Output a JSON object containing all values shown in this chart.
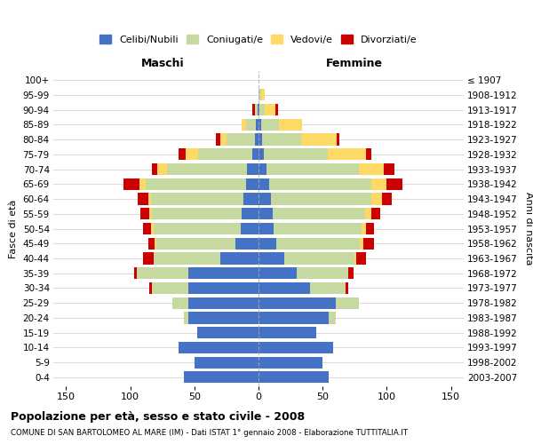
{
  "age_groups": [
    "0-4",
    "5-9",
    "10-14",
    "15-19",
    "20-24",
    "25-29",
    "30-34",
    "35-39",
    "40-44",
    "45-49",
    "50-54",
    "55-59",
    "60-64",
    "65-69",
    "70-74",
    "75-79",
    "80-84",
    "85-89",
    "90-94",
    "95-99",
    "100+"
  ],
  "birth_years": [
    "2003-2007",
    "1998-2002",
    "1993-1997",
    "1988-1992",
    "1983-1987",
    "1978-1982",
    "1973-1977",
    "1968-1972",
    "1963-1967",
    "1958-1962",
    "1953-1957",
    "1948-1952",
    "1943-1947",
    "1938-1942",
    "1933-1937",
    "1928-1932",
    "1923-1927",
    "1918-1922",
    "1913-1917",
    "1908-1912",
    "≤ 1907"
  ],
  "male": {
    "celibi": [
      58,
      50,
      62,
      48,
      55,
      55,
      55,
      55,
      30,
      18,
      14,
      13,
      12,
      10,
      9,
      5,
      3,
      2,
      1,
      0,
      0
    ],
    "coniugati": [
      0,
      0,
      0,
      0,
      3,
      12,
      28,
      40,
      52,
      62,
      68,
      70,
      72,
      78,
      62,
      42,
      22,
      8,
      2,
      0,
      0
    ],
    "vedovi": [
      0,
      0,
      0,
      0,
      0,
      0,
      0,
      0,
      0,
      1,
      2,
      2,
      2,
      5,
      8,
      10,
      5,
      3,
      0,
      0,
      0
    ],
    "divorziati": [
      0,
      0,
      0,
      0,
      0,
      0,
      2,
      2,
      8,
      5,
      6,
      7,
      8,
      12,
      4,
      5,
      3,
      0,
      2,
      0,
      0
    ]
  },
  "female": {
    "nubili": [
      55,
      50,
      58,
      45,
      55,
      60,
      40,
      30,
      20,
      14,
      12,
      11,
      10,
      8,
      6,
      4,
      3,
      2,
      1,
      0,
      0
    ],
    "coniugate": [
      0,
      0,
      0,
      0,
      5,
      18,
      28,
      40,
      55,
      65,
      68,
      72,
      78,
      80,
      72,
      50,
      30,
      14,
      4,
      2,
      0
    ],
    "vedove": [
      0,
      0,
      0,
      0,
      0,
      0,
      0,
      0,
      1,
      3,
      4,
      5,
      8,
      12,
      20,
      30,
      28,
      18,
      8,
      3,
      0
    ],
    "divorziate": [
      0,
      0,
      0,
      0,
      0,
      0,
      2,
      4,
      8,
      8,
      6,
      7,
      8,
      12,
      8,
      4,
      2,
      0,
      2,
      0,
      0
    ]
  },
  "colors": {
    "celibi": "#4472C4",
    "coniugati": "#C5D9A0",
    "vedovi": "#FFD966",
    "divorziati": "#CC0000"
  },
  "legend_labels": [
    "Celibi/Nubili",
    "Coniugati/e",
    "Vedovi/e",
    "Divorziati/e"
  ],
  "title": "Popolazione per età, sesso e stato civile - 2008",
  "subtitle": "COMUNE DI SAN BARTOLOMEO AL MARE (IM) - Dati ISTAT 1° gennaio 2008 - Elaborazione TUTTITALIA.IT",
  "xlabel_left": "Maschi",
  "xlabel_right": "Femmine",
  "ylabel_left": "Fasce di età",
  "ylabel_right": "Anni di nascita",
  "xlim": 160
}
